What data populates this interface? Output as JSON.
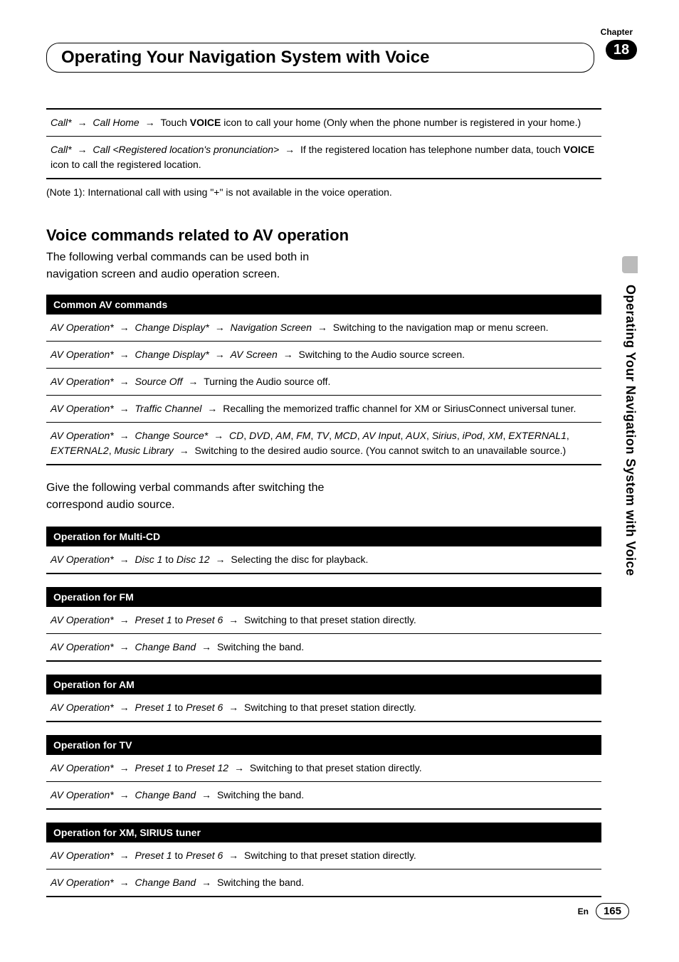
{
  "chapter_label": "Chapter",
  "chapter_number": "18",
  "title": "Operating Your Navigation System with Voice",
  "side_text": "Operating Your Navigation System with Voice",
  "footer_lang": "En",
  "page_number": "165",
  "arrow": "→",
  "intro_block": {
    "row1": {
      "parts": [
        {
          "t": "Call*",
          "i": true
        },
        {
          "t": "→",
          "a": true
        },
        {
          "t": "Call Home",
          "i": true
        },
        {
          "t": "→",
          "a": true
        },
        {
          "t": "Touch "
        },
        {
          "t": "VOICE",
          "b": true
        },
        {
          "t": " icon to call your home (Only when the phone number is registered in your home.)"
        }
      ]
    },
    "row2": {
      "parts": [
        {
          "t": "Call*",
          "i": true
        },
        {
          "t": "→",
          "a": true
        },
        {
          "t": "Call <Registered location's pronunciation>",
          "i": true
        },
        {
          "t": "→",
          "a": true
        },
        {
          "t": "If the registered location has telephone number data, touch "
        },
        {
          "t": "VOICE",
          "b": true
        },
        {
          "t": " icon to call the registered location."
        }
      ]
    },
    "note": "(Note 1): International call with using \"+\" is not available in the voice operation."
  },
  "section_heading": "Voice commands related to AV operation",
  "section_intro": "The following verbal commands can be used both in navigation screen and audio operation screen.",
  "common": {
    "header": "Common AV commands",
    "rows": [
      [
        {
          "t": "AV Operation*",
          "i": true
        },
        {
          "t": "→",
          "a": true
        },
        {
          "t": "Change Display*",
          "i": true
        },
        {
          "t": "→",
          "a": true
        },
        {
          "t": "Navigation Screen",
          "i": true
        },
        {
          "t": "→",
          "a": true
        },
        {
          "t": "Switching to the navigation map or menu screen."
        }
      ],
      [
        {
          "t": "AV Operation*",
          "i": true
        },
        {
          "t": "→",
          "a": true
        },
        {
          "t": "Change Display*",
          "i": true
        },
        {
          "t": "→",
          "a": true
        },
        {
          "t": "AV Screen",
          "i": true
        },
        {
          "t": "→",
          "a": true
        },
        {
          "t": "Switching to the Audio source screen."
        }
      ],
      [
        {
          "t": "AV Operation*",
          "i": true
        },
        {
          "t": "→",
          "a": true
        },
        {
          "t": "Source Off",
          "i": true
        },
        {
          "t": "→",
          "a": true
        },
        {
          "t": "Turning the Audio source off."
        }
      ],
      [
        {
          "t": "AV Operation*",
          "i": true
        },
        {
          "t": "→",
          "a": true
        },
        {
          "t": "Traffic Channel",
          "i": true
        },
        {
          "t": "→",
          "a": true
        },
        {
          "t": "Recalling the memorized traffic channel for XM or SiriusConnect universal tuner."
        }
      ],
      [
        {
          "t": "AV Operation*",
          "i": true
        },
        {
          "t": "→",
          "a": true
        },
        {
          "t": "Change Source*",
          "i": true
        },
        {
          "t": "→",
          "a": true
        },
        {
          "t": "CD",
          "i": true
        },
        {
          "t": ", "
        },
        {
          "t": "DVD",
          "i": true
        },
        {
          "t": ", "
        },
        {
          "t": "AM",
          "i": true
        },
        {
          "t": ", "
        },
        {
          "t": "FM",
          "i": true
        },
        {
          "t": ", "
        },
        {
          "t": "TV",
          "i": true
        },
        {
          "t": ", "
        },
        {
          "t": "MCD",
          "i": true
        },
        {
          "t": ", "
        },
        {
          "t": "AV Input",
          "i": true
        },
        {
          "t": ", "
        },
        {
          "t": "AUX",
          "i": true
        },
        {
          "t": ", "
        },
        {
          "t": "Sirius",
          "i": true
        },
        {
          "t": ",  "
        },
        {
          "t": "iPod",
          "i": true
        },
        {
          "t": ", "
        },
        {
          "t": "XM",
          "i": true
        },
        {
          "t": ", "
        },
        {
          "t": "EXTERNAL1",
          "i": true
        },
        {
          "t": ", "
        },
        {
          "t": "EXTERNAL2",
          "i": true
        },
        {
          "t": ", "
        },
        {
          "t": "Music Library",
          "i": true
        },
        {
          "t": "→",
          "a": true
        },
        {
          "t": "Switching to the desired audio source. (You cannot switch to an unavailable source.)"
        }
      ]
    ]
  },
  "mid_para": "Give the following verbal commands after switching the correspond audio source.",
  "blocks": [
    {
      "header": "Operation for Multi-CD",
      "rows": [
        [
          {
            "t": "AV Operation*",
            "i": true
          },
          {
            "t": "→",
            "a": true
          },
          {
            "t": "Disc 1",
            "i": true
          },
          {
            "t": " to "
          },
          {
            "t": "Disc 12",
            "i": true
          },
          {
            "t": "→",
            "a": true
          },
          {
            "t": "Selecting the disc for playback."
          }
        ]
      ]
    },
    {
      "header": "Operation for FM",
      "rows": [
        [
          {
            "t": "AV Operation*",
            "i": true
          },
          {
            "t": "→",
            "a": true
          },
          {
            "t": "Preset 1",
            "i": true
          },
          {
            "t": " to "
          },
          {
            "t": "Preset 6",
            "i": true
          },
          {
            "t": "→",
            "a": true
          },
          {
            "t": "Switching to that preset station directly."
          }
        ],
        [
          {
            "t": "AV Operation*",
            "i": true
          },
          {
            "t": "→",
            "a": true
          },
          {
            "t": "Change Band",
            "i": true
          },
          {
            "t": "→",
            "a": true
          },
          {
            "t": "Switching the band."
          }
        ]
      ]
    },
    {
      "header": "Operation for AM",
      "rows": [
        [
          {
            "t": "AV Operation*",
            "i": true
          },
          {
            "t": "→",
            "a": true
          },
          {
            "t": "Preset 1",
            "i": true
          },
          {
            "t": " to "
          },
          {
            "t": "Preset 6",
            "i": true
          },
          {
            "t": "→",
            "a": true
          },
          {
            "t": "Switching to that preset station directly."
          }
        ]
      ]
    },
    {
      "header": "Operation for TV",
      "rows": [
        [
          {
            "t": "AV Operation*",
            "i": true
          },
          {
            "t": "→",
            "a": true
          },
          {
            "t": "Preset 1",
            "i": true
          },
          {
            "t": " to "
          },
          {
            "t": "Preset 12",
            "i": true
          },
          {
            "t": "→",
            "a": true
          },
          {
            "t": "Switching to that preset station directly."
          }
        ],
        [
          {
            "t": "AV Operation*",
            "i": true
          },
          {
            "t": "→",
            "a": true
          },
          {
            "t": "Change Band",
            "i": true
          },
          {
            "t": "→",
            "a": true
          },
          {
            "t": "Switching the band."
          }
        ]
      ]
    },
    {
      "header": "Operation for XM, SIRIUS tuner",
      "rows": [
        [
          {
            "t": "AV Operation*",
            "i": true
          },
          {
            "t": "→",
            "a": true
          },
          {
            "t": "Preset 1",
            "i": true
          },
          {
            "t": " to "
          },
          {
            "t": "Preset 6",
            "i": true
          },
          {
            "t": "→",
            "a": true
          },
          {
            "t": "Switching to that preset station directly."
          }
        ],
        [
          {
            "t": "AV Operation*",
            "i": true
          },
          {
            "t": "→",
            "a": true
          },
          {
            "t": "Change Band",
            "i": true
          },
          {
            "t": "→",
            "a": true
          },
          {
            "t": "Switching the band."
          }
        ]
      ]
    }
  ]
}
